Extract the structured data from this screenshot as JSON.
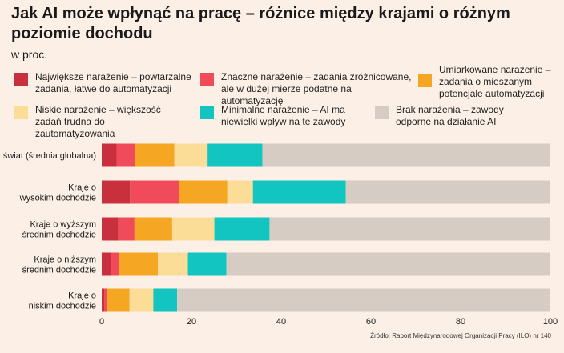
{
  "title": "Jak AI może wpłynąć na pracę – różnice między krajami o różnym poziomie dochodu",
  "subtitle": "w proc.",
  "legend": [
    {
      "label": "Największe narażenie – powtarzalne zadania, łatwe do automatyzacji",
      "color": "#c9303e"
    },
    {
      "label": "Znaczne narażenie – zadania zróżnicowane, ale w dużej mierze podatne na automatyzację",
      "color": "#ef4b5b"
    },
    {
      "label": "Umiarkowane narażenie – zadania o mieszanym potencjale automatyzacji",
      "color": "#f5a623"
    },
    {
      "label": "Niskie narażenie – większość zadań trudna do zautomatyzowania",
      "color": "#fcdd98"
    },
    {
      "label": "Minimalne narażenie – AI ma niewielki wpływ na te zawody",
      "color": "#12c5c1"
    },
    {
      "label": "Brak narażenia – zawody odporne na działanie AI",
      "color": "#d6ccc4"
    }
  ],
  "source": "Źródło: Raport Międzynarodowej Organizacji Pracy (ILO) nr 140",
  "chart_data": {
    "type": "bar",
    "orientation": "horizontal",
    "stacked": true,
    "categories": [
      "świat (średnia globalna)",
      "Kraje o wysokim dochodzie",
      "Kraje o wyższym średnim dochodzie",
      "Kraje o niższym średnim dochodzie",
      "Kraje o niskim dochodzie"
    ],
    "series": [
      {
        "name": "Największe narażenie – powtarzalne zadania, łatwe do automatyzacji",
        "color": "#c9303e",
        "values": [
          3.3,
          6.3,
          3.7,
          2.0,
          0.6
        ]
      },
      {
        "name": "Znaczne narażenie – zadania zróżnicowane, ale w dużej mierze podatne na automatyzację",
        "color": "#ef4b5b",
        "values": [
          4.2,
          11.0,
          3.6,
          1.8,
          0.5
        ]
      },
      {
        "name": "Umiarkowane narażenie – zadania o mieszanym potencjale automatyzacji",
        "color": "#f5a623",
        "values": [
          8.7,
          10.7,
          8.4,
          8.7,
          5.1
        ]
      },
      {
        "name": "Niskie narażenie – większość zadań trudna do zautomatyzowania",
        "color": "#fcdd98",
        "values": [
          7.4,
          5.7,
          9.4,
          6.7,
          5.3
        ]
      },
      {
        "name": "Minimalne narażenie – AI ma niewielki wpływ na te zawody",
        "color": "#12c5c1",
        "values": [
          12.2,
          20.7,
          12.3,
          8.6,
          5.3
        ]
      },
      {
        "name": "Brak narażenia – zawody odporne na działanie AI",
        "color": "#d6ccc4",
        "values": [
          64.2,
          45.6,
          62.6,
          72.2,
          83.2
        ]
      }
    ],
    "xlim": [
      0,
      100
    ],
    "xticks": [
      0,
      20,
      40,
      60,
      80,
      100
    ],
    "grid": false
  }
}
